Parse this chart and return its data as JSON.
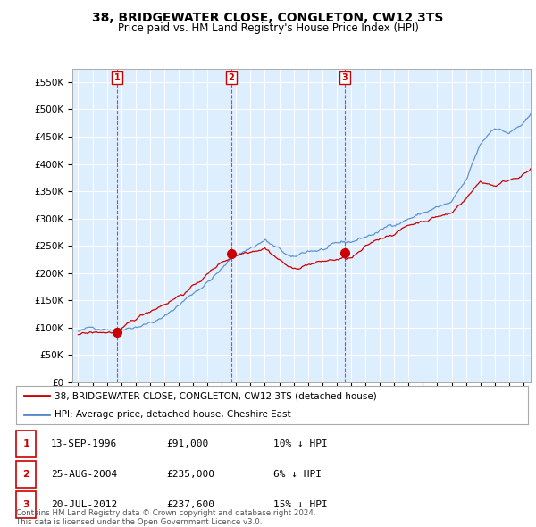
{
  "title": "38, BRIDGEWATER CLOSE, CONGLETON, CW12 3TS",
  "subtitle": "Price paid vs. HM Land Registry's House Price Index (HPI)",
  "legend_line1": "38, BRIDGEWATER CLOSE, CONGLETON, CW12 3TS (detached house)",
  "legend_line2": "HPI: Average price, detached house, Cheshire East",
  "sale_points": [
    {
      "label": "1",
      "date_num": 1996.71,
      "price": 91000
    },
    {
      "label": "2",
      "date_num": 2004.65,
      "price": 235000
    },
    {
      "label": "3",
      "date_num": 2012.55,
      "price": 237600
    }
  ],
  "table_rows": [
    {
      "num": "1",
      "date": "13-SEP-1996",
      "price": "£91,000",
      "hpi": "10% ↓ HPI"
    },
    {
      "num": "2",
      "date": "25-AUG-2004",
      "price": "£235,000",
      "hpi": "6% ↓ HPI"
    },
    {
      "num": "3",
      "date": "20-JUL-2012",
      "price": "£237,600",
      "hpi": "15% ↓ HPI"
    }
  ],
  "footer": "Contains HM Land Registry data © Crown copyright and database right 2024.\nThis data is licensed under the Open Government Licence v3.0.",
  "ylim": [
    0,
    575000
  ],
  "yticks": [
    0,
    50000,
    100000,
    150000,
    200000,
    250000,
    300000,
    350000,
    400000,
    450000,
    500000,
    550000
  ],
  "xlim_start": 1993.6,
  "xlim_end": 2025.5,
  "price_paid_color": "#cc0000",
  "hpi_color": "#5588cc",
  "chart_bg_color": "#ddeeff",
  "background_color": "#ffffff",
  "grid_color": "#ffffff",
  "sale_marker_color": "#cc0000",
  "dashed_line_color": "#cc0000"
}
